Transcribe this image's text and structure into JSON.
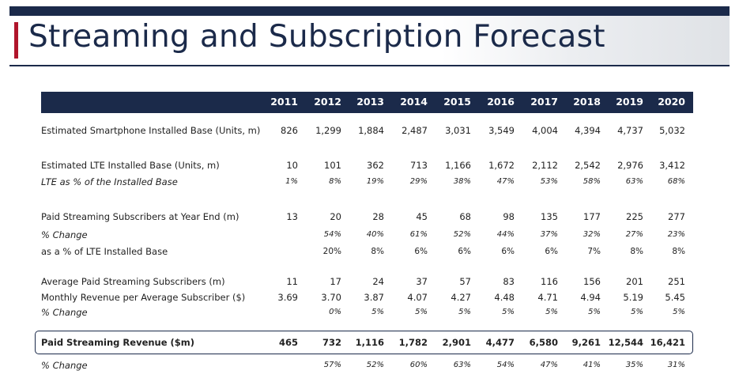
{
  "title": "Streaming and Subscription Forecast",
  "years": [
    "2011",
    "2012",
    "2013",
    "2014",
    "2015",
    "2016",
    "2017",
    "2018",
    "2019",
    "2020"
  ],
  "rows": [
    {
      "label": "Estimated Smartphone Installed Base (Units, m)",
      "italic": false,
      "bold": false,
      "values": [
        "826",
        "1,299",
        "1,884",
        "2,487",
        "3,031",
        "3,549",
        "4,004",
        "4,394",
        "4,737",
        "5,032"
      ]
    },
    {
      "label": "Estimated LTE Installed Base (Units, m)",
      "italic": false,
      "bold": false,
      "values": [
        "10",
        "101",
        "362",
        "713",
        "1,166",
        "1,672",
        "2,112",
        "2,542",
        "2,976",
        "3,412"
      ]
    },
    {
      "label": "LTE as % of the Installed Base",
      "italic": true,
      "bold": false,
      "values": [
        "1%",
        "8%",
        "19%",
        "29%",
        "38%",
        "47%",
        "53%",
        "58%",
        "63%",
        "68%"
      ]
    },
    {
      "label": "Paid Streaming Subscribers at Year End (m)",
      "italic": false,
      "bold": false,
      "values": [
        "13",
        "20",
        "28",
        "45",
        "68",
        "98",
        "135",
        "177",
        "225",
        "277"
      ]
    },
    {
      "label": "% Change",
      "italic": true,
      "bold": false,
      "values": [
        "",
        "54%",
        "40%",
        "61%",
        "52%",
        "44%",
        "37%",
        "32%",
        "27%",
        "23%"
      ]
    },
    {
      "label": "as a % of LTE Installed Base",
      "italic": false,
      "bold": false,
      "small": true,
      "values": [
        "",
        "20%",
        "8%",
        "6%",
        "6%",
        "6%",
        "6%",
        "7%",
        "8%",
        "8%"
      ]
    },
    {
      "label": "Average Paid Streaming Subscribers (m)",
      "italic": false,
      "bold": false,
      "values": [
        "11",
        "17",
        "24",
        "37",
        "57",
        "83",
        "116",
        "156",
        "201",
        "251"
      ]
    },
    {
      "label": "Monthly Revenue per Average Subscriber ($)",
      "italic": false,
      "bold": false,
      "values": [
        "3.69",
        "3.70",
        "3.87",
        "4.07",
        "4.27",
        "4.48",
        "4.71",
        "4.94",
        "5.19",
        "5.45"
      ]
    },
    {
      "label": "% Change",
      "italic": true,
      "bold": false,
      "values": [
        "",
        "0%",
        "5%",
        "5%",
        "5%",
        "5%",
        "5%",
        "5%",
        "5%",
        "5%"
      ]
    },
    {
      "label": "Paid Streaming Revenue ($m)",
      "italic": false,
      "bold": true,
      "values": [
        "465",
        "732",
        "1,116",
        "1,782",
        "2,901",
        "4,477",
        "6,580",
        "9,261",
        "12,544",
        "16,421"
      ]
    },
    {
      "label": "% Change",
      "italic": true,
      "bold": false,
      "values": [
        "",
        "57%",
        "52%",
        "60%",
        "63%",
        "54%",
        "47%",
        "41%",
        "35%",
        "31%"
      ]
    }
  ]
}
